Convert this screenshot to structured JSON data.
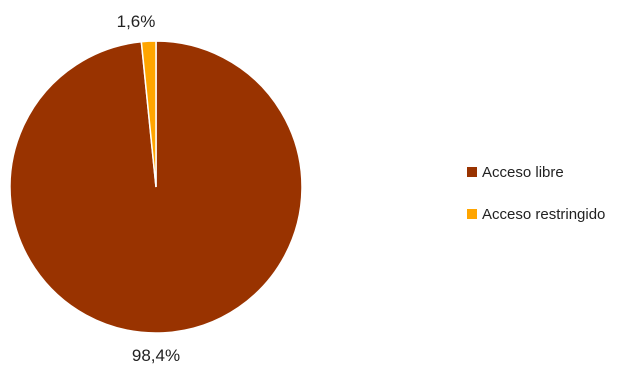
{
  "chart_data": {
    "type": "pie",
    "title": "",
    "categories": [
      "Acceso libre",
      "Acceso restringido"
    ],
    "values": [
      98.4,
      1.6
    ],
    "value_labels": [
      "98,4%",
      "1,6%"
    ],
    "colors": [
      "#993300",
      "#FFA500"
    ],
    "slice_border_color": "#ffffff",
    "start_angle_deg": 0,
    "direction": "counterclockwise-from-top-for-small-slice",
    "legend_position": "right",
    "legend": [
      {
        "label": "Acceso libre",
        "color": "#993300"
      },
      {
        "label": "Acceso restringido",
        "color": "#FFA500"
      }
    ]
  }
}
